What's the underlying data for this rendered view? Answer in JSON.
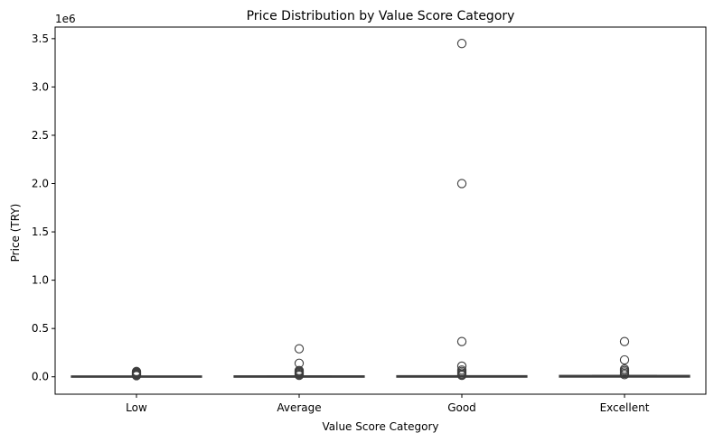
{
  "chart_data": {
    "type": "box",
    "title": "Price Distribution by Value Score Category",
    "xlabel": "Value Score Category",
    "ylabel": "Price (TRY)",
    "y_offset_label": "1e6",
    "ylim": [
      -180000,
      3620000
    ],
    "y_ticks": [
      0,
      500000,
      1000000,
      1500000,
      2000000,
      2500000,
      3000000,
      3500000
    ],
    "y_tick_labels": [
      "0.0",
      "0.5",
      "1.0",
      "1.5",
      "2.0",
      "2.5",
      "3.0",
      "3.5"
    ],
    "categories": [
      "Low",
      "Average",
      "Good",
      "Excellent"
    ],
    "boxes": [
      {
        "category": "Low",
        "q1": 1000,
        "median": 2000,
        "q3": 3500,
        "whisker_low": 0,
        "whisker_high": 6000,
        "outliers": [
          12000,
          18000,
          25000,
          32000,
          40000,
          48000,
          55000
        ]
      },
      {
        "category": "Average",
        "q1": 1200,
        "median": 2500,
        "q3": 4500,
        "whisker_low": 0,
        "whisker_high": 8000,
        "outliers": [
          15000,
          25000,
          35000,
          45000,
          55000,
          65000,
          140000,
          290000
        ]
      },
      {
        "category": "Good",
        "q1": 1500,
        "median": 3000,
        "q3": 6000,
        "whisker_low": 0,
        "whisker_high": 10000,
        "outliers": [
          15000,
          25000,
          40000,
          55000,
          70000,
          110000,
          365000,
          2000000,
          3450000
        ]
      },
      {
        "category": "Excellent",
        "q1": 2000,
        "median": 4500,
        "q3": 9000,
        "whisker_low": 0,
        "whisker_high": 15000,
        "outliers": [
          22000,
          35000,
          50000,
          65000,
          80000,
          175000,
          365000
        ]
      }
    ],
    "grid": false,
    "box_color": "#3a75c4",
    "line_color": "#3d3d3d"
  }
}
